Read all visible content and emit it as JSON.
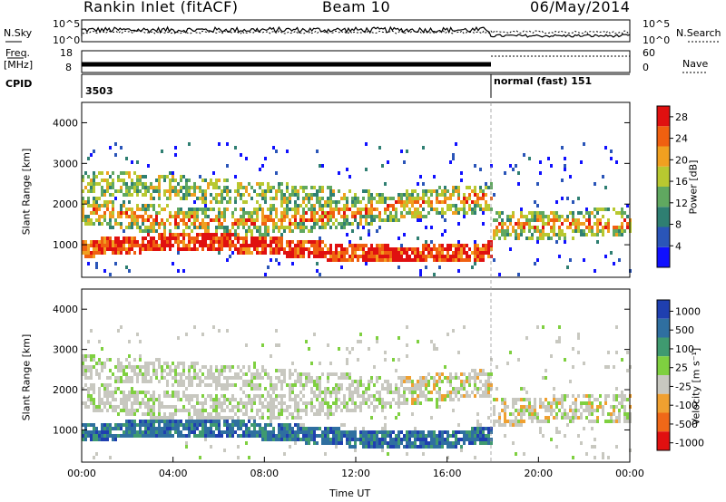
{
  "header": {
    "station": "Rankin Inlet (fitACF)",
    "beam": "Beam 10",
    "date": "06/May/2014"
  },
  "top_panels": {
    "nsky_label": "N.Sky",
    "nsearch_label": "N.Search",
    "freq_label": "Freq.",
    "freq_unit": "[MHz]",
    "nave_label": "Nave",
    "cpid_label": "CPID",
    "nsky_ticks": [
      "10^5",
      "10^0"
    ],
    "nsearch_ticks": [
      "10^5",
      "10^0"
    ],
    "freq_ticks": [
      "18",
      "8"
    ],
    "nave_ticks": [
      "60",
      "0"
    ],
    "cpid_values": [
      "3503",
      "normal (fast) 151"
    ]
  },
  "chart_data": [
    {
      "type": "heatmap",
      "panel": "power",
      "ylabel": "Slant Range [km]",
      "yticks": [
        "1000",
        "2000",
        "3000",
        "4000"
      ],
      "ylim": [
        200,
        4500
      ],
      "colorbar": {
        "label": "Power [dB]",
        "ticks": [
          "4",
          "8",
          "12",
          "16",
          "20",
          "24",
          "28"
        ],
        "range": [
          0,
          30
        ],
        "colors": [
          "#1010ff",
          "#2a55b8",
          "#2f7f72",
          "#60a860",
          "#b8c830",
          "#f0a020",
          "#f06010",
          "#e01010"
        ]
      },
      "bands": [
        {
          "t": [
            0,
            18
          ],
          "r": [
            700,
            1100
          ],
          "level": 26
        },
        {
          "t": [
            0,
            24
          ],
          "r": [
            1300,
            2300
          ],
          "level": 16
        },
        {
          "t": [
            0,
            12
          ],
          "r": [
            2300,
            3000
          ],
          "level": 18
        },
        {
          "t": [
            18,
            24
          ],
          "r": [
            1350,
            1700
          ],
          "level": 24
        },
        {
          "t": [
            0,
            24
          ],
          "r": [
            300,
            3600
          ],
          "level": 6
        }
      ]
    },
    {
      "type": "heatmap",
      "panel": "velocity",
      "ylabel": "Slant Range [km]",
      "yticks": [
        "1000",
        "2000",
        "3000",
        "4000"
      ],
      "ylim": [
        200,
        4500
      ],
      "colorbar": {
        "label": "Velocity [m s⁻¹]",
        "ticks": [
          "1000",
          "500",
          "100",
          "25",
          "-25",
          "-100",
          "-500",
          "-1000"
        ],
        "colors": [
          "#1f3fb0",
          "#2f6fa0",
          "#3f9a70",
          "#7fd040",
          "#c8c8c0",
          "#f0a030",
          "#f06818",
          "#e01010"
        ]
      },
      "xlabel": "Time UT",
      "xticks": [
        "00:00",
        "04:00",
        "08:00",
        "12:00",
        "16:00",
        "20:00",
        "00:00"
      ],
      "xlim": [
        0,
        24
      ]
    }
  ]
}
